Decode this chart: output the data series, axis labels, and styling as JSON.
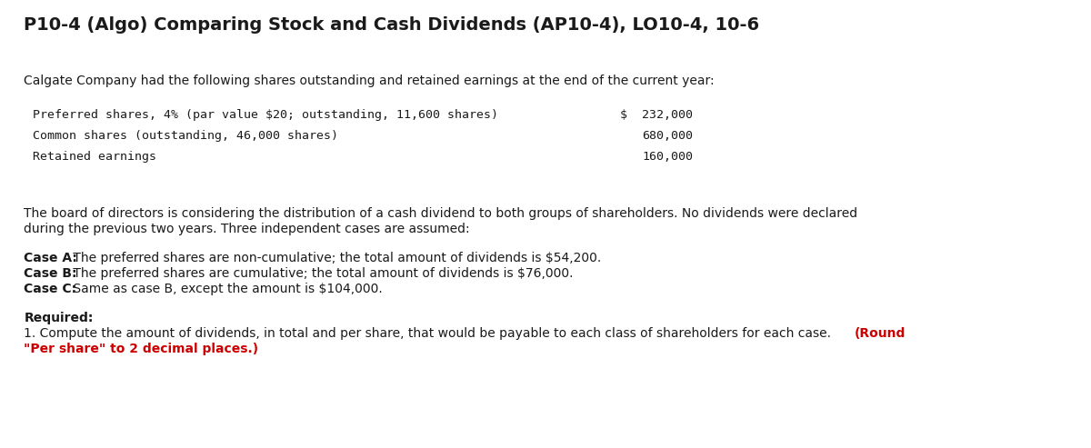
{
  "title": "P10-4 (Algo) Comparing Stock and Cash Dividends (AP10-4), LO10-4, 10-6",
  "title_fontsize": 14,
  "background_color": "#ffffff",
  "intro_text": "Calgate Company had the following shares outstanding and retained earnings at the end of the current year:",
  "table_rows": [
    {
      "label": "Preferred shares, 4% (par value $20; outstanding, 11,600 shares)",
      "value": "$  232,000"
    },
    {
      "label": "Common shares (outstanding, 46,000 shares)",
      "value": "680,000"
    },
    {
      "label": "Retained earnings",
      "value": "160,000"
    }
  ],
  "table_bg": "#d9dde8",
  "table_font": "monospace",
  "table_fontsize": 9.5,
  "body_text1_line1": "The board of directors is considering the distribution of a cash dividend to both groups of shareholders. No dividends were declared",
  "body_text1_line2": "during the previous two years. Three independent cases are assumed:",
  "cases": [
    {
      "label": "Case A:",
      "text": " The preferred shares are non-cumulative; the total amount of dividends is $54,200."
    },
    {
      "label": "Case B:",
      "text": " The preferred shares are cumulative; the total amount of dividends is $76,000."
    },
    {
      "label": "Case C:",
      "text": " Same as case B, except the amount is $104,000."
    }
  ],
  "required_label": "Required:",
  "required_text_line1_normal": "1. Compute the amount of dividends, in total and per share, that would be payable to each class of shareholders for each case. ",
  "required_text_line1_red": "(Round",
  "required_text_line2_red": "\"Per share\" to 2 decimal places.)",
  "body_fontsize": 10,
  "body_font": "DejaVu Sans",
  "text_color": "#1a1a1a",
  "red_color": "#cc0000",
  "fig_width": 12.0,
  "fig_height": 4.93,
  "dpi": 100
}
